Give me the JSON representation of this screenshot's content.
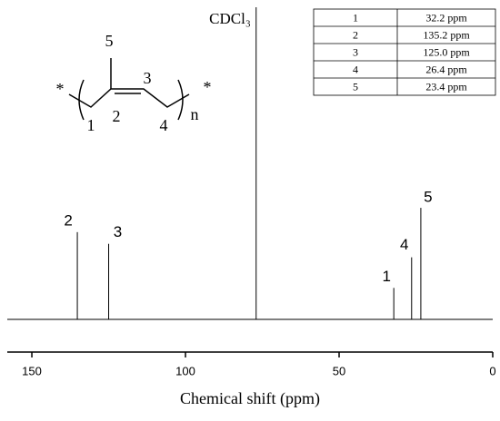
{
  "chart_data": {
    "type": "spectrum",
    "x_label": "Chemical shift (ppm)",
    "xlim": [
      158,
      0
    ],
    "xticks": [
      150,
      100,
      50,
      0
    ],
    "ylim": [
      0,
      350
    ],
    "x": [
      135.2,
      125.0,
      77.0,
      32.2,
      26.4,
      23.4
    ],
    "values": [
      97,
      84,
      347,
      35,
      69,
      124
    ],
    "point_labels": [
      "2",
      "3",
      "CDCl₃",
      "1",
      "4",
      "5"
    ],
    "color": "#000000"
  },
  "table": {
    "rows": [
      [
        "1",
        "32.2 ppm"
      ],
      [
        "2",
        "135.2 ppm"
      ],
      [
        "3",
        "125.0 ppm"
      ],
      [
        "4",
        "26.4 ppm"
      ],
      [
        "5",
        "23.4 ppm"
      ]
    ]
  },
  "structure": {
    "labels": [
      "*",
      "1",
      "2",
      "3",
      "4",
      "5",
      "n",
      "*"
    ]
  }
}
